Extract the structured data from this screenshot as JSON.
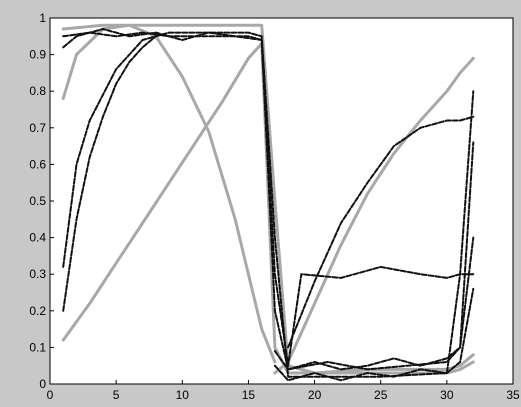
{
  "chart_data": {
    "type": "line",
    "title": "",
    "xlabel": "",
    "ylabel": "",
    "xlim": [
      0,
      35
    ],
    "ylim": [
      0,
      1
    ],
    "x_ticks": [
      "0",
      "5",
      "10",
      "15",
      "20",
      "25",
      "30",
      "35"
    ],
    "y_ticks": [
      "0",
      "0.1",
      "0.2",
      "0.3",
      "0.4",
      "0.5",
      "0.6",
      "0.7",
      "0.8",
      "0.9",
      "1"
    ],
    "grid": false,
    "legend": "none",
    "colors": {
      "figure_background": "#c8c8c8",
      "plot_background": "#ffffff",
      "dark_series": "#111111",
      "light_series": "#a8a8a8"
    },
    "series": [
      {
        "color": "#a8a8a8",
        "x": [
          1,
          3,
          5,
          7,
          9,
          11,
          13,
          15,
          16,
          17,
          18,
          20,
          22,
          24,
          26,
          28,
          30,
          31,
          32
        ],
        "y": [
          0.12,
          0.22,
          0.33,
          0.44,
          0.55,
          0.66,
          0.77,
          0.89,
          0.93,
          0.1,
          0.03,
          0.03,
          0.03,
          0.03,
          0.03,
          0.03,
          0.03,
          0.04,
          0.06
        ]
      },
      {
        "color": "#a8a8a8",
        "x": [
          1,
          2,
          4,
          6,
          8,
          10,
          12,
          14,
          15,
          16,
          17
        ],
        "y": [
          0.78,
          0.9,
          0.97,
          0.98,
          0.95,
          0.84,
          0.69,
          0.45,
          0.3,
          0.15,
          0.06
        ]
      },
      {
        "color": "#a8a8a8",
        "x": [
          17,
          18,
          20,
          22,
          24,
          26,
          28,
          30,
          31,
          32
        ],
        "y": [
          0.03,
          0.06,
          0.22,
          0.38,
          0.52,
          0.63,
          0.72,
          0.8,
          0.85,
          0.89
        ]
      },
      {
        "color": "#a8a8a8",
        "x": [
          1,
          4,
          7,
          10,
          13,
          16,
          17,
          18,
          20,
          24,
          28,
          30,
          31,
          32
        ],
        "y": [
          0.97,
          0.98,
          0.98,
          0.98,
          0.98,
          0.98,
          0.5,
          0.05,
          0.03,
          0.04,
          0.04,
          0.04,
          0.05,
          0.08
        ]
      },
      {
        "color": "#111111",
        "x": [
          1,
          2,
          3,
          5,
          7,
          9,
          11,
          13,
          15,
          16,
          17,
          18,
          20,
          25,
          30,
          31,
          32
        ],
        "y": [
          0.32,
          0.6,
          0.72,
          0.86,
          0.94,
          0.96,
          0.96,
          0.96,
          0.96,
          0.95,
          0.4,
          0.02,
          0.02,
          0.02,
          0.03,
          0.3,
          0.8
        ]
      },
      {
        "color": "#111111",
        "x": [
          1,
          2,
          4,
          6,
          8,
          10,
          12,
          14,
          16,
          17,
          18,
          21,
          24,
          27,
          30,
          31,
          32
        ],
        "y": [
          0.92,
          0.95,
          0.97,
          0.95,
          0.96,
          0.94,
          0.96,
          0.95,
          0.94,
          0.2,
          0.04,
          0.06,
          0.04,
          0.05,
          0.06,
          0.1,
          0.4
        ]
      },
      {
        "color": "#111111",
        "x": [
          1,
          3,
          5,
          7,
          9,
          11,
          13,
          15,
          16,
          17,
          18,
          19,
          22,
          25,
          28,
          30,
          31,
          32
        ],
        "y": [
          0.95,
          0.96,
          0.95,
          0.96,
          0.95,
          0.95,
          0.95,
          0.95,
          0.94,
          0.3,
          0.05,
          0.3,
          0.29,
          0.32,
          0.3,
          0.29,
          0.3,
          0.3
        ]
      },
      {
        "color": "#111111",
        "x": [
          1,
          2,
          3,
          4,
          5,
          6,
          7,
          8
        ],
        "y": [
          0.2,
          0.45,
          0.62,
          0.73,
          0.82,
          0.88,
          0.92,
          0.95
        ]
      },
      {
        "color": "#111111",
        "x": [
          18,
          20,
          22,
          24,
          26,
          28,
          30,
          31,
          32
        ],
        "y": [
          0.1,
          0.28,
          0.44,
          0.55,
          0.65,
          0.7,
          0.72,
          0.72,
          0.73
        ]
      },
      {
        "color": "#111111",
        "x": [
          17,
          18,
          20,
          22,
          24,
          26,
          28,
          30,
          31,
          32
        ],
        "y": [
          0.05,
          0.01,
          0.03,
          0.01,
          0.03,
          0.02,
          0.04,
          0.03,
          0.06,
          0.26
        ]
      },
      {
        "color": "#111111",
        "x": [
          17,
          18,
          20,
          22,
          24,
          26,
          28,
          30,
          31,
          32
        ],
        "y": [
          0.09,
          0.04,
          0.06,
          0.04,
          0.05,
          0.07,
          0.05,
          0.07,
          0.1,
          0.66
        ]
      }
    ]
  }
}
